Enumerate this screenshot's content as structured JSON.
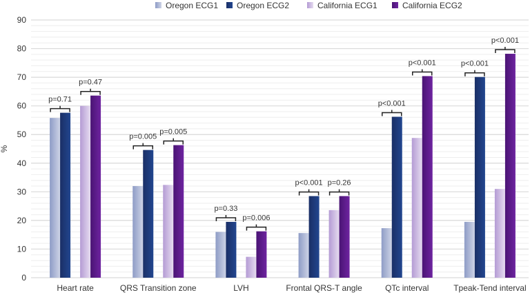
{
  "chart_data": {
    "type": "bar",
    "title": "",
    "xlabel": "",
    "ylabel": "%",
    "ylim": [
      0,
      90
    ],
    "yticks": [
      0,
      10,
      20,
      30,
      40,
      50,
      60,
      70,
      80,
      90
    ],
    "grid": true,
    "legend_position": "top",
    "categories": [
      "Heart rate",
      "QRS Transition zone",
      "LVH",
      "Frontal QRS-T angle",
      "QTc interval",
      "Tpeak-Tend interval"
    ],
    "series": [
      {
        "name": "Oregon ECG1",
        "color_light": "#cdd3e6",
        "color_dark": "#8e9cc6",
        "values": [
          55.8,
          32.0,
          16.0,
          15.6,
          17.3,
          19.5
        ]
      },
      {
        "name": "Oregon ECG2",
        "color_light": "#22468f",
        "color_dark": "#1a2f66",
        "values": [
          57.6,
          44.6,
          19.5,
          28.5,
          56.2,
          70.1
        ]
      },
      {
        "name": "California ECG1",
        "color_light": "#e6dcf0",
        "color_dark": "#b49bd4",
        "values": [
          60.0,
          32.4,
          7.3,
          23.6,
          48.8,
          31.0
        ]
      },
      {
        "name": "California ECG2",
        "color_light": "#6e24a0",
        "color_dark": "#4a1474",
        "values": [
          63.6,
          46.3,
          16.2,
          28.5,
          70.4,
          78.2
        ]
      }
    ],
    "annotations": [
      {
        "category": "Heart rate",
        "pair": "Oregon",
        "text": "p=0.71"
      },
      {
        "category": "Heart rate",
        "pair": "California",
        "text": "p=0.47"
      },
      {
        "category": "QRS Transition zone",
        "pair": "Oregon",
        "text": "p=0.005"
      },
      {
        "category": "QRS Transition zone",
        "pair": "California",
        "text": "p=0.005"
      },
      {
        "category": "LVH",
        "pair": "Oregon",
        "text": "p=0.33"
      },
      {
        "category": "LVH",
        "pair": "California",
        "text": "p=0.006"
      },
      {
        "category": "Frontal QRS-T angle",
        "pair": "Oregon",
        "text": "p<0.001"
      },
      {
        "category": "Frontal QRS-T angle",
        "pair": "California",
        "text": "p=0.26"
      },
      {
        "category": "QTc interval",
        "pair": "Oregon",
        "text": "p<0.001"
      },
      {
        "category": "QTc interval",
        "pair": "California",
        "text": "p<0.001"
      },
      {
        "category": "Tpeak-Tend interval",
        "pair": "Oregon",
        "text": "p<0.001"
      },
      {
        "category": "Tpeak-Tend interval",
        "pair": "California",
        "text": "p<0.001"
      }
    ]
  }
}
